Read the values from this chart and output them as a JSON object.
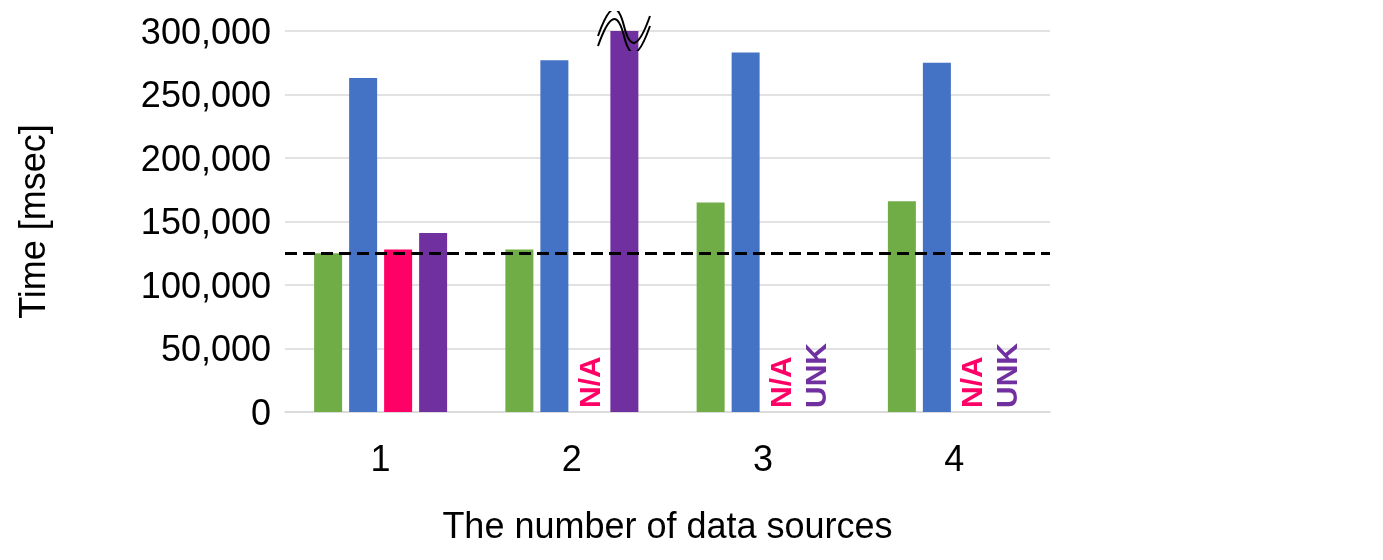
{
  "chart_data": {
    "type": "bar",
    "xlabel": "The number of data sources",
    "ylabel": "Time [msec]",
    "categories": [
      "1",
      "2",
      "3",
      "4"
    ],
    "series": [
      {
        "color": "#70ad47",
        "values": [
          125000,
          128000,
          165000,
          166000
        ]
      },
      {
        "color": "#4472c4",
        "values": [
          263000,
          277000,
          283000,
          275000
        ]
      },
      {
        "color": "#ff0066",
        "values": [
          128000,
          null,
          null,
          null
        ],
        "value_labels": [
          null,
          "N/A",
          "N/A",
          "N/A"
        ]
      },
      {
        "color": "#7030a0",
        "values": [
          141000,
          300000,
          null,
          null
        ],
        "value_labels": [
          null,
          null,
          "UNK",
          "UNK"
        ]
      }
    ],
    "ylim": [
      0,
      300000
    ],
    "yticks": [
      0,
      {
        "value": 50000,
        "label": "50,000"
      },
      {
        "value": 100000,
        "label": "100,000"
      },
      {
        "value": 150000,
        "label": "150,000"
      },
      {
        "value": 200000,
        "label": "200,000"
      },
      {
        "value": 250000,
        "label": "250,000"
      },
      {
        "value": 300000,
        "label": "300,000"
      }
    ],
    "grid": "y",
    "ref_lines": [
      {
        "axis": "y",
        "value": 125000,
        "color": "#000000",
        "line_style": "dashed"
      }
    ]
  }
}
